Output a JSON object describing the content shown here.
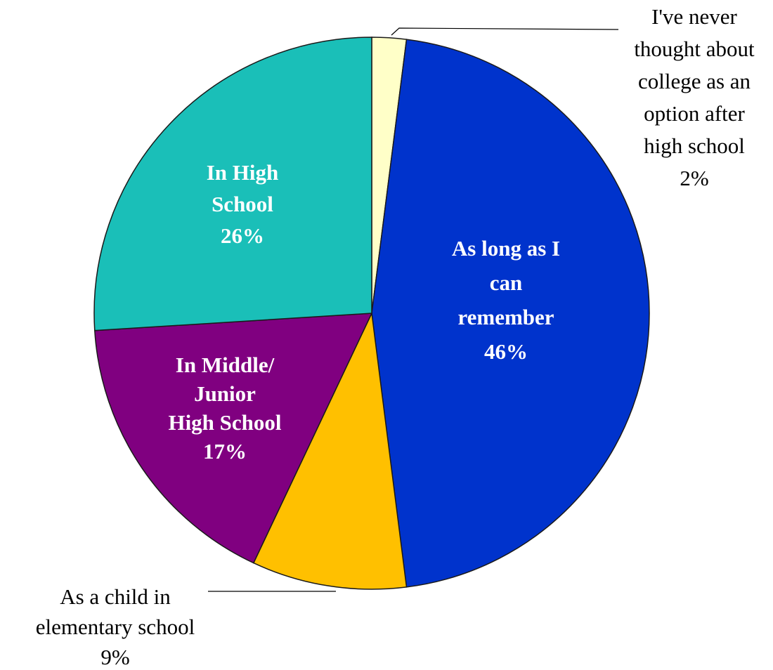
{
  "chart_data": {
    "type": "pie",
    "title": "",
    "slices": [
      {
        "label_lines": [
          "I've never",
          "thought about",
          "college as an",
          "option after",
          "high school"
        ],
        "pct_label": "2%",
        "value": 2,
        "color": "#FFFFC8",
        "label_placement": "outside"
      },
      {
        "label_lines": [
          "As long as I",
          "can",
          "remember"
        ],
        "pct_label": "46%",
        "value": 46,
        "color": "#0033CC",
        "label_placement": "inside"
      },
      {
        "label_lines": [
          "As a child in",
          "elementary school"
        ],
        "pct_label": "9%",
        "value": 9,
        "color": "#FFC000",
        "label_placement": "outside"
      },
      {
        "label_lines": [
          "In Middle/",
          "Junior",
          "High School"
        ],
        "pct_label": "17%",
        "value": 17,
        "color": "#800080",
        "label_placement": "inside"
      },
      {
        "label_lines": [
          "In High",
          "School"
        ],
        "pct_label": "26%",
        "value": 26,
        "color": "#1ABFB8",
        "label_placement": "inside"
      }
    ],
    "start_angle_deg": 0,
    "direction": "clockwise"
  }
}
